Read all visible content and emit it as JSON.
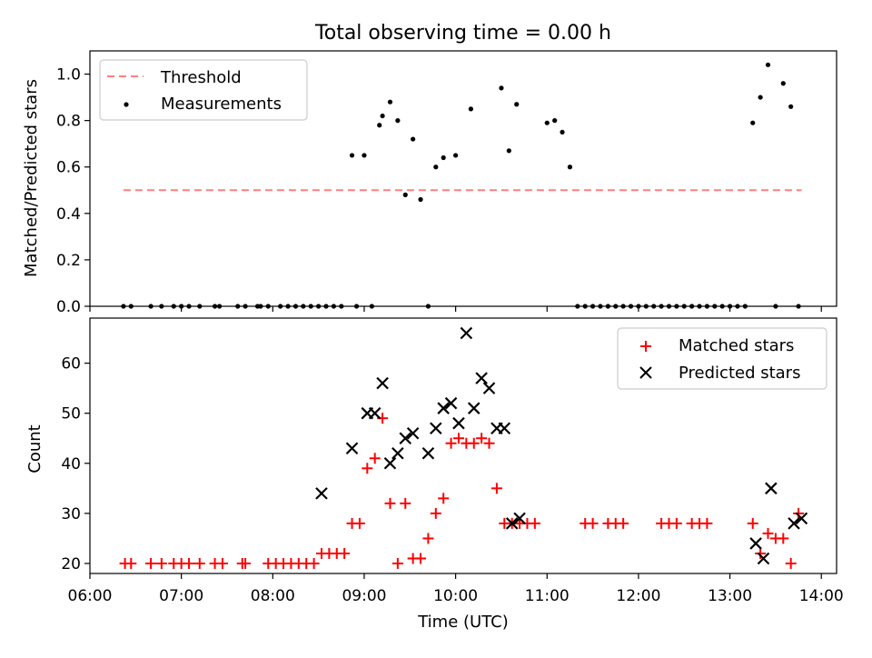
{
  "chart_data": [
    {
      "type": "scatter",
      "title": "Total observing time = 0.00 h",
      "xlabel": "",
      "ylabel": "Matched/Predicted stars",
      "xlim": [
        "06:00",
        "14:10"
      ],
      "ylim": [
        0,
        1.1
      ],
      "yticks": [
        "0.0",
        "0.2",
        "0.4",
        "0.6",
        "0.8",
        "1.0"
      ],
      "legend_position": "upper-left",
      "colors": {
        "threshold": "#ff7f7f",
        "measurements": "#000000"
      },
      "series": [
        {
          "name": "Threshold",
          "style": "dashed-line",
          "x": [
            "06:22",
            "13:47"
          ],
          "y": [
            0.5,
            0.5
          ]
        },
        {
          "name": "Measurements",
          "style": "dot",
          "x": [
            "06:22",
            "06:27",
            "06:40",
            "06:47",
            "06:55",
            "07:00",
            "07:05",
            "07:12",
            "07:22",
            "07:25",
            "07:37",
            "07:42",
            "07:50",
            "07:52",
            "07:57",
            "08:05",
            "08:10",
            "08:15",
            "08:20",
            "08:25",
            "08:30",
            "08:35",
            "08:40",
            "08:45",
            "08:52",
            "08:55",
            "09:00",
            "09:05",
            "09:10",
            "09:12",
            "09:17",
            "09:22",
            "09:27",
            "09:32",
            "09:37",
            "09:42",
            "09:47",
            "09:52",
            "10:00",
            "10:10",
            "10:30",
            "10:35",
            "10:40",
            "11:00",
            "11:05",
            "11:10",
            "11:15",
            "11:20",
            "11:25",
            "11:30",
            "11:35",
            "11:40",
            "11:45",
            "11:50",
            "11:55",
            "12:00",
            "12:05",
            "12:10",
            "12:15",
            "12:20",
            "12:25",
            "12:30",
            "12:35",
            "12:40",
            "12:45",
            "12:50",
            "12:55",
            "13:00",
            "13:05",
            "13:10",
            "13:15",
            "13:20",
            "13:25",
            "13:30",
            "13:35",
            "13:40",
            "13:45"
          ],
          "y": [
            0,
            0,
            0,
            0,
            0,
            0,
            0,
            0,
            0,
            0,
            0,
            0,
            0,
            0,
            0,
            0,
            0,
            0,
            0,
            0,
            0,
            0,
            0,
            0,
            0.65,
            0,
            0.65,
            0,
            0.78,
            0.82,
            0.88,
            0.8,
            0.48,
            0.72,
            0.46,
            0,
            0.6,
            0.64,
            0.65,
            0.85,
            0.94,
            0.67,
            0.87,
            0.79,
            0.8,
            0.75,
            0.6,
            0,
            0,
            0,
            0,
            0,
            0,
            0,
            0,
            0,
            0,
            0,
            0,
            0,
            0,
            0,
            0,
            0,
            0,
            0,
            0,
            0,
            0,
            0,
            0.79,
            0.9,
            1.04,
            0,
            0.96,
            0.86,
            0
          ]
        }
      ]
    },
    {
      "type": "scatter",
      "title": "",
      "xlabel": "Time (UTC)",
      "ylabel": "Count",
      "xlim": [
        "06:00",
        "14:10"
      ],
      "ylim": [
        18,
        69
      ],
      "xticks": [
        "06:00",
        "07:00",
        "08:00",
        "09:00",
        "10:00",
        "11:00",
        "12:00",
        "13:00",
        "14:00"
      ],
      "yticks": [
        "20",
        "30",
        "40",
        "50",
        "60"
      ],
      "legend_position": "upper-right",
      "colors": {
        "matched": "#ff0000",
        "predicted": "#000000"
      },
      "series": [
        {
          "name": "Matched stars",
          "marker": "plus",
          "x": [
            "06:23",
            "06:27",
            "06:40",
            "06:47",
            "06:55",
            "07:00",
            "07:05",
            "07:12",
            "07:22",
            "07:27",
            "07:40",
            "07:42",
            "07:57",
            "08:02",
            "08:07",
            "08:12",
            "08:17",
            "08:22",
            "08:27",
            "08:32",
            "08:37",
            "08:42",
            "08:47",
            "08:52",
            "08:57",
            "09:02",
            "09:07",
            "09:12",
            "09:17",
            "09:22",
            "09:27",
            "09:32",
            "09:37",
            "09:42",
            "09:47",
            "09:52",
            "09:57",
            "10:02",
            "10:07",
            "10:12",
            "10:17",
            "10:22",
            "10:27",
            "10:32",
            "10:37",
            "10:42",
            "10:47",
            "10:52",
            "11:25",
            "11:30",
            "11:40",
            "11:45",
            "11:50",
            "12:15",
            "12:20",
            "12:25",
            "12:35",
            "12:40",
            "12:45",
            "13:15",
            "13:20",
            "13:25",
            "13:30",
            "13:35",
            "13:40",
            "13:45"
          ],
          "y": [
            20,
            20,
            20,
            20,
            20,
            20,
            20,
            20,
            20,
            20,
            20,
            20,
            20,
            20,
            20,
            20,
            20,
            20,
            20,
            22,
            22,
            22,
            22,
            28,
            28,
            39,
            41,
            49,
            32,
            20,
            32,
            21,
            21,
            25,
            30,
            33,
            44,
            45,
            44,
            44,
            45,
            44,
            35,
            28,
            28,
            28,
            28,
            28,
            28,
            28,
            28,
            28,
            28,
            28,
            28,
            28,
            28,
            28,
            28,
            28,
            22,
            26,
            25,
            25,
            20,
            30
          ]
        },
        {
          "name": "Predicted stars",
          "marker": "x",
          "x": [
            "08:32",
            "08:52",
            "09:02",
            "09:07",
            "09:12",
            "09:17",
            "09:22",
            "09:27",
            "09:32",
            "09:42",
            "09:47",
            "09:52",
            "09:57",
            "10:02",
            "10:07",
            "10:12",
            "10:17",
            "10:22",
            "10:27",
            "10:32",
            "10:37",
            "10:42",
            "13:17",
            "13:22",
            "13:27",
            "13:42",
            "13:47"
          ],
          "y": [
            34,
            43,
            50,
            50,
            56,
            40,
            42,
            45,
            46,
            42,
            47,
            51,
            52,
            48,
            66,
            51,
            57,
            55,
            47,
            47,
            28,
            29,
            24,
            21,
            35,
            28,
            29
          ]
        }
      ]
    }
  ]
}
